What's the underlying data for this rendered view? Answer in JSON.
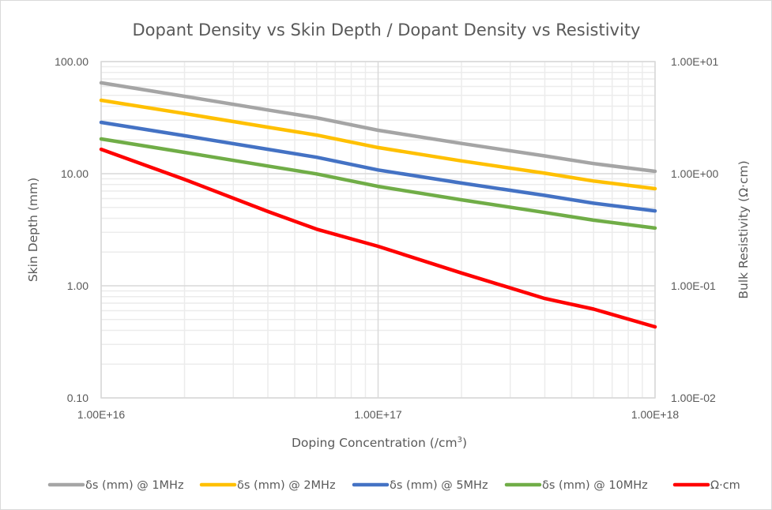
{
  "chart_data": {
    "type": "line",
    "title": "Dopant Density vs Skin Depth / Dopant Density vs Resistivity",
    "xlabel": "Doping Concentration (/cm³)",
    "ylabel": "Skin Depth (mm)",
    "y2label": "Bulk Resistivity (Ω·cm)",
    "xscale": "log",
    "yscale": "log",
    "y2scale": "log",
    "xlim": [
      1e+16,
      1e+18
    ],
    "ylim": [
      0.1,
      100
    ],
    "y2lim": [
      0.01,
      10
    ],
    "grid": true,
    "legend_position": "bottom",
    "x_ticks": [
      {
        "value": 1e+16,
        "label": "1.00E+16"
      },
      {
        "value": 1e+17,
        "label": "1.00E+17"
      },
      {
        "value": 1e+18,
        "label": "1.00E+18"
      }
    ],
    "y_ticks": [
      {
        "value": 100,
        "label": "100.00"
      },
      {
        "value": 10,
        "label": "10.00"
      },
      {
        "value": 1,
        "label": "1.00"
      },
      {
        "value": 0.1,
        "label": "0.10"
      }
    ],
    "y2_ticks": [
      {
        "value": 10,
        "label": "1.00E+01"
      },
      {
        "value": 1,
        "label": "1.00E+00"
      },
      {
        "value": 0.1,
        "label": "1.00E-01"
      },
      {
        "value": 0.01,
        "label": "1.00E-02"
      }
    ],
    "x": [
      1e+16,
      2e+16,
      4e+16,
      6e+16,
      1e+17,
      2e+17,
      4e+17,
      6e+17,
      1e+18
    ],
    "series": [
      {
        "name": "δs (mm) @ 1MHz",
        "axis": "left",
        "color": "#a5a5a5",
        "values": [
          64.6,
          49.0,
          37.0,
          31.5,
          24.4,
          18.6,
          14.4,
          12.3,
          10.5
        ]
      },
      {
        "name": "δs (mm) @ 2MHz",
        "axis": "left",
        "color": "#ffc000",
        "values": [
          45.2,
          34.4,
          26.0,
          22.1,
          17.1,
          13.0,
          10.1,
          8.6,
          7.35
        ]
      },
      {
        "name": "δs (mm) @ 5MHz",
        "axis": "left",
        "color": "#4472c4",
        "values": [
          28.7,
          21.8,
          16.5,
          14.0,
          10.8,
          8.25,
          6.4,
          5.45,
          4.66
        ]
      },
      {
        "name": "δs (mm) @ 10MHz",
        "axis": "left",
        "color": "#70ad47",
        "values": [
          20.4,
          15.5,
          11.7,
          9.95,
          7.7,
          5.85,
          4.5,
          3.85,
          3.27
        ]
      },
      {
        "name": "Ω·cm",
        "axis": "right",
        "color": "#ff0000",
        "values": [
          1.65,
          0.89,
          0.46,
          0.32,
          0.225,
          0.13,
          0.077,
          0.062,
          0.043
        ]
      }
    ]
  }
}
